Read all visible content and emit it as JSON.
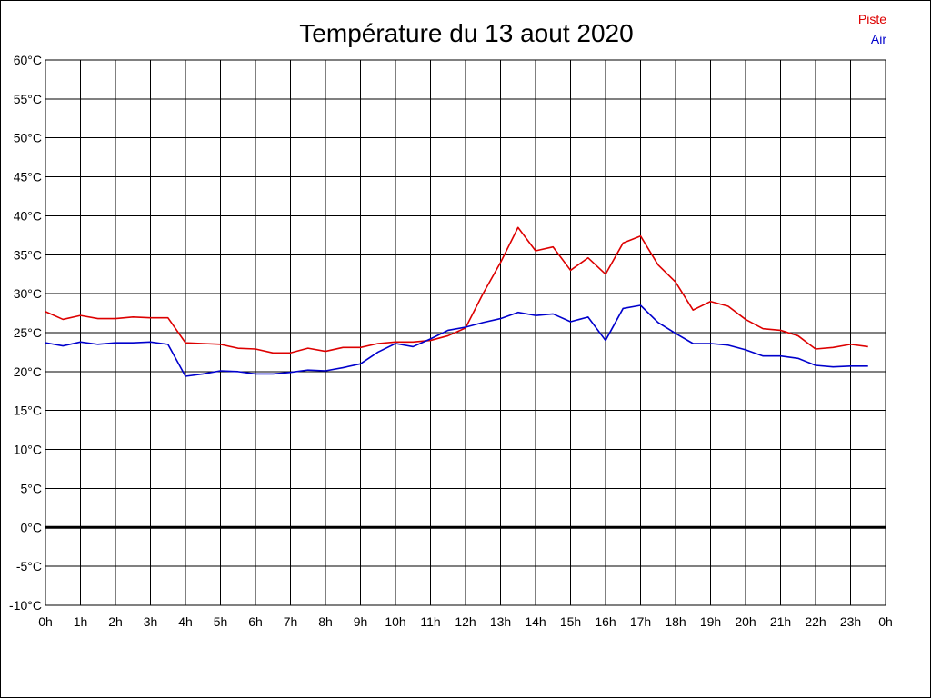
{
  "chart_data": {
    "type": "line",
    "title": "Température du 13 aout 2020",
    "xlabel": "",
    "ylabel": "",
    "grid": true,
    "legend_position": "top-right",
    "x_tick_labels": [
      "0h",
      "1h",
      "2h",
      "3h",
      "4h",
      "5h",
      "6h",
      "7h",
      "8h",
      "9h",
      "10h",
      "11h",
      "12h",
      "13h",
      "14h",
      "15h",
      "16h",
      "17h",
      "18h",
      "19h",
      "20h",
      "21h",
      "22h",
      "23h",
      "0h"
    ],
    "y_tick_labels": [
      "60°C",
      "55°C",
      "50°C",
      "45°C",
      "40°C",
      "35°C",
      "30°C",
      "25°C",
      "20°C",
      "15°C",
      "10°C",
      "5°C",
      "0°C",
      "-5°C",
      "-10°C"
    ],
    "xlim": [
      0,
      24
    ],
    "ylim": [
      -10,
      60
    ],
    "x": [
      0,
      0.5,
      1,
      1.5,
      2,
      2.5,
      3,
      3.5,
      4,
      4.5,
      5,
      5.5,
      6,
      6.5,
      7,
      7.5,
      8,
      8.5,
      9,
      9.5,
      10,
      10.5,
      11,
      11.5,
      12,
      12.5,
      13,
      13.5,
      14,
      14.5,
      15,
      15.5,
      16,
      16.5,
      17,
      17.5,
      18,
      18.5,
      19,
      19.5,
      20,
      20.5,
      21,
      21.5,
      22,
      22.5,
      23,
      23.5
    ],
    "series": [
      {
        "name": "Piste",
        "color": "#dd0000",
        "values": [
          27.7,
          26.7,
          27.2,
          26.8,
          26.8,
          27.0,
          26.9,
          26.9,
          23.7,
          23.6,
          23.5,
          23.0,
          22.9,
          22.4,
          22.4,
          23.0,
          22.6,
          23.1,
          23.1,
          23.6,
          23.8,
          23.8,
          24.0,
          24.6,
          25.6,
          30.0,
          34.0,
          38.5,
          35.5,
          36.0,
          33.0,
          34.6,
          32.5,
          36.5,
          37.4,
          33.7,
          31.5,
          27.9,
          29.0,
          28.4,
          26.7,
          25.5,
          25.3,
          24.6,
          22.9,
          23.1,
          23.5,
          23.2
        ]
      },
      {
        "name": "Air",
        "color": "#0000cc",
        "values": [
          23.7,
          23.3,
          23.8,
          23.5,
          23.7,
          23.7,
          23.8,
          23.5,
          19.4,
          19.7,
          20.1,
          20.0,
          19.7,
          19.7,
          19.9,
          20.2,
          20.1,
          20.5,
          21.0,
          22.5,
          23.6,
          23.2,
          24.2,
          25.3,
          25.7,
          26.3,
          26.8,
          27.6,
          27.2,
          27.4,
          26.4,
          27.0,
          24.0,
          28.1,
          28.5,
          26.3,
          24.9,
          23.6,
          23.6,
          23.4,
          22.8,
          22.0,
          22.0,
          21.7,
          20.8,
          20.6,
          20.7,
          20.7
        ]
      }
    ],
    "zero_line": 0
  }
}
